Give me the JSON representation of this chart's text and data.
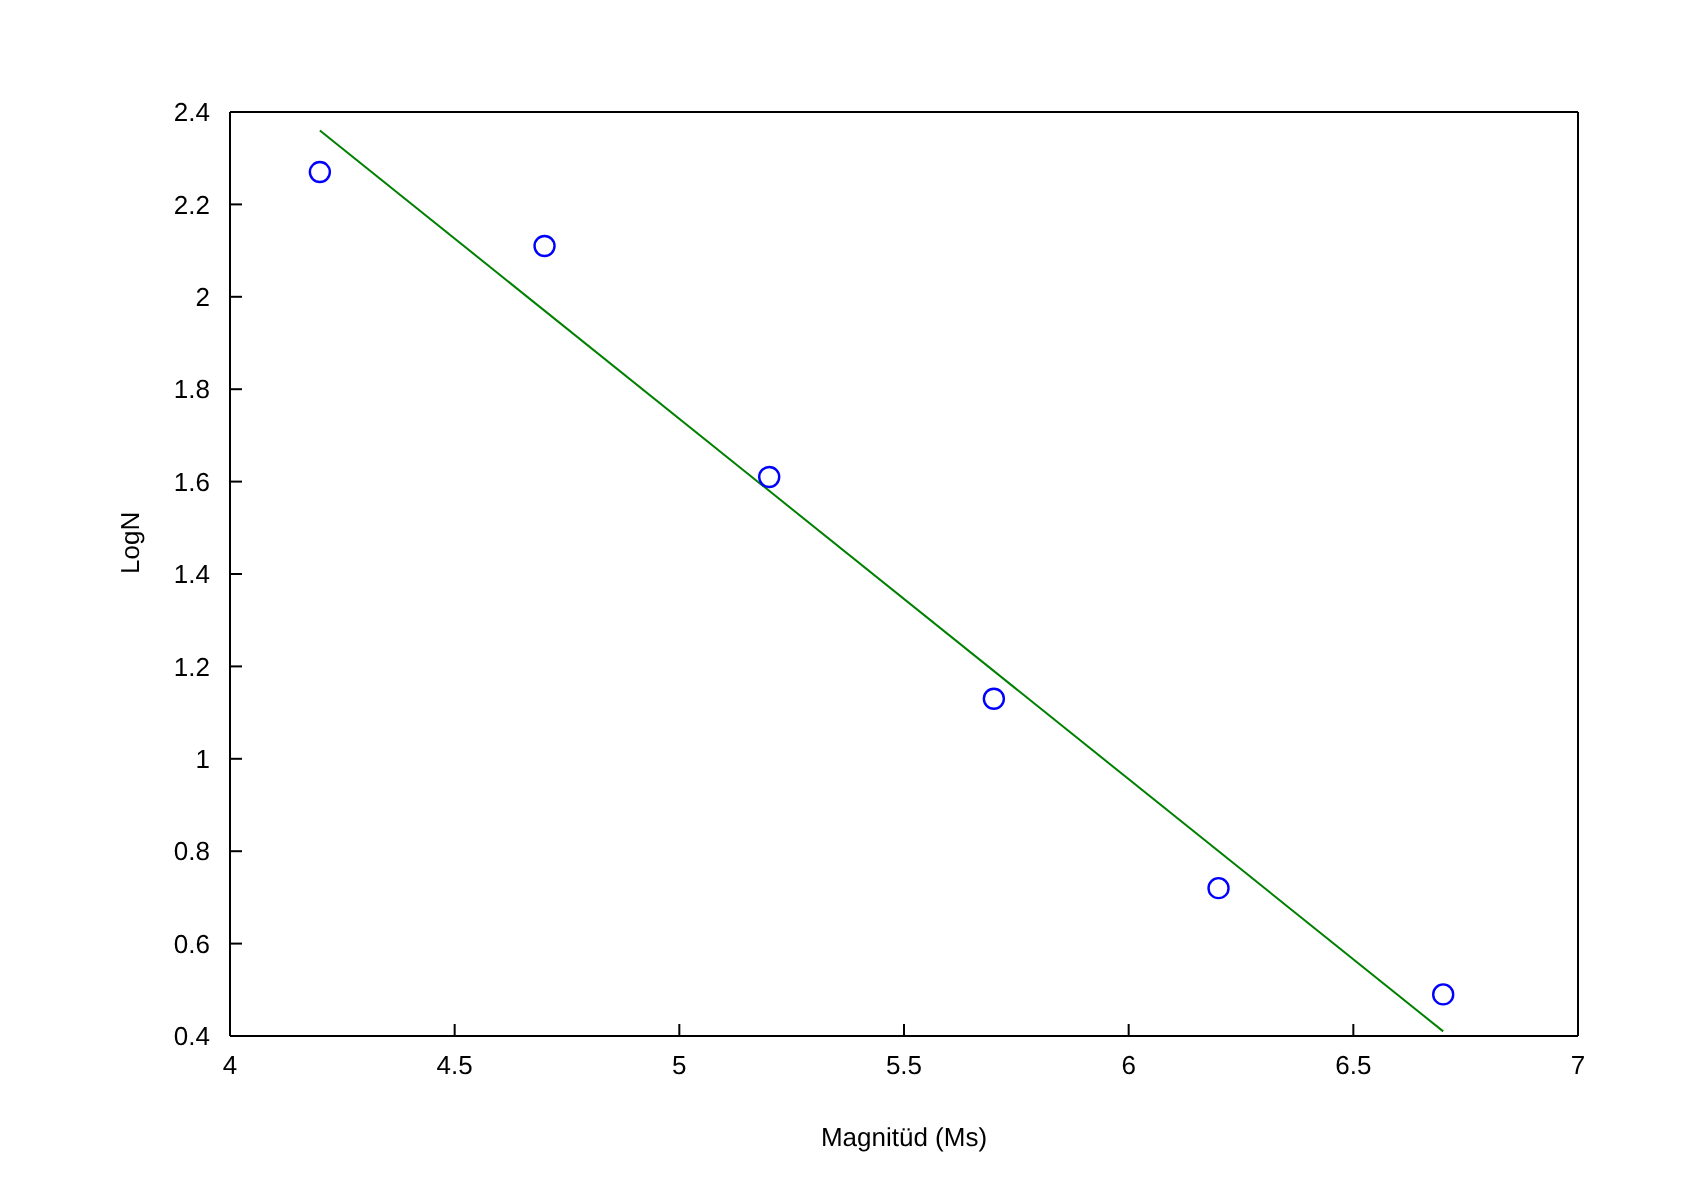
{
  "chart_data": {
    "type": "scatter",
    "xlabel": "Magnitüd (Ms)",
    "ylabel": "LogN",
    "xlim": [
      4,
      7
    ],
    "xticks": [
      4,
      4.5,
      5,
      5.5,
      6,
      6.5,
      7
    ],
    "ylim": [
      0.4,
      2.4
    ],
    "yticks": [
      0.4,
      0.6,
      0.8,
      1,
      1.2,
      1.4,
      1.6,
      1.8,
      2,
      2.2,
      2.4
    ],
    "grid": false,
    "marker": "circle",
    "series": [
      {
        "type": "scatter",
        "color": "#0000ff",
        "x": [
          4.2,
          4.7,
          5.2,
          5.7,
          6.2,
          6.7
        ],
        "values": [
          2.27,
          2.11,
          1.61,
          1.13,
          0.72,
          0.49
        ]
      },
      {
        "type": "line",
        "color": "#008000",
        "marker": "none",
        "x": [
          4.2,
          6.7
        ],
        "values": [
          2.36,
          0.41
        ]
      }
    ]
  }
}
